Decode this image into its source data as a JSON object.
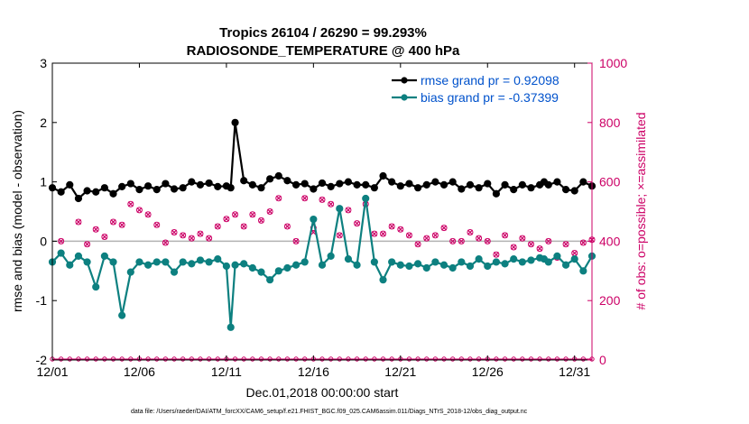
{
  "colors": {
    "rmse": "#000000",
    "bias": "#0d8080",
    "obs": "#cc0066",
    "legend_text": "#0052cc",
    "zero_line": "#b3b3b3",
    "axis": "#000000"
  },
  "chart_data": {
    "type": "line",
    "title_line1": "Tropics 26104 / 26290 = 99.293%",
    "title_line2": "RADIOSONDE_TEMPERATURE @ 400 hPa",
    "xlabel": "Dec.01,2018 00:00:00 start",
    "ylabel_left": "rmse and bias (model - observation)",
    "ylabel_right": "# of obs: o=possible; ×=assimilated",
    "footer": "data file: /Users/raeder/DAI/ATM_forcXX/CAM6_setup/f.e21.FHIST_BGC.f09_025.CAM6assim.011/Diags_NTrS_2018-12/obs_diag_output.nc",
    "x_ticks": [
      0,
      5,
      10,
      15,
      20,
      25,
      30
    ],
    "x_tick_labels": [
      "12/01",
      "12/06",
      "12/11",
      "12/16",
      "12/21",
      "12/26",
      "12/31"
    ],
    "xlim": [
      0,
      31
    ],
    "ylim_left": [
      -2,
      3
    ],
    "y_ticks_left": [
      -2,
      -1,
      0,
      1,
      2,
      3
    ],
    "ylim_right": [
      0,
      1000
    ],
    "y_ticks_right": [
      0,
      200,
      400,
      600,
      800,
      1000
    ],
    "legend": [
      {
        "label": "rmse grand pr = 0.92098",
        "series": "rmse"
      },
      {
        "label": "bias grand pr = -0.37399",
        "series": "bias"
      }
    ],
    "series": [
      {
        "name": "rmse",
        "axis": "left",
        "x": [
          0,
          0.5,
          1,
          1.5,
          2,
          2.5,
          3,
          3.5,
          4,
          4.5,
          5,
          5.5,
          6,
          6.5,
          7,
          7.5,
          8,
          8.5,
          9,
          9.5,
          10,
          10.25,
          10.5,
          11,
          11.5,
          12,
          12.5,
          13,
          13.5,
          14,
          14.5,
          15,
          15.5,
          16,
          16.5,
          17,
          17.5,
          18,
          18.5,
          19,
          19.5,
          20,
          20.5,
          21,
          21.5,
          22,
          22.5,
          23,
          23.5,
          24,
          24.5,
          25,
          25.5,
          26,
          26.5,
          27,
          27.5,
          28,
          28.25,
          28.5,
          29,
          29.5,
          30,
          30.5,
          31
        ],
        "values": [
          0.9,
          0.83,
          0.95,
          0.72,
          0.85,
          0.83,
          0.9,
          0.8,
          0.92,
          0.97,
          0.87,
          0.93,
          0.87,
          0.97,
          0.88,
          0.9,
          1.0,
          0.95,
          0.98,
          0.92,
          0.93,
          0.9,
          2.0,
          1.02,
          0.95,
          0.9,
          1.05,
          1.1,
          1.02,
          0.95,
          0.97,
          0.88,
          0.98,
          0.92,
          0.97,
          1.0,
          0.95,
          0.95,
          0.9,
          1.1,
          1.0,
          0.93,
          0.97,
          0.9,
          0.95,
          1.0,
          0.95,
          1.0,
          0.88,
          0.95,
          0.9,
          0.97,
          0.8,
          0.95,
          0.87,
          0.95,
          0.9,
          0.95,
          1.0,
          0.95,
          1.0,
          0.87,
          0.85,
          1.0,
          0.93
        ]
      },
      {
        "name": "bias",
        "axis": "left",
        "x": [
          0,
          0.5,
          1,
          1.5,
          2,
          2.5,
          3,
          3.5,
          4,
          4.5,
          5,
          5.5,
          6,
          6.5,
          7,
          7.5,
          8,
          8.5,
          9,
          9.5,
          10,
          10.25,
          10.5,
          11,
          11.5,
          12,
          12.5,
          13,
          13.5,
          14,
          14.5,
          15,
          15.5,
          16,
          16.5,
          17,
          17.5,
          18,
          18.5,
          19,
          19.5,
          20,
          20.5,
          21,
          21.5,
          22,
          22.5,
          23,
          23.5,
          24,
          24.5,
          25,
          25.5,
          26,
          26.5,
          27,
          27.5,
          28,
          28.25,
          28.5,
          29,
          29.5,
          30,
          30.5,
          31
        ],
        "values": [
          -0.35,
          -0.2,
          -0.4,
          -0.25,
          -0.35,
          -0.77,
          -0.25,
          -0.35,
          -1.25,
          -0.52,
          -0.35,
          -0.4,
          -0.35,
          -0.35,
          -0.52,
          -0.35,
          -0.38,
          -0.32,
          -0.35,
          -0.3,
          -0.42,
          -1.45,
          -0.4,
          -0.38,
          -0.45,
          -0.52,
          -0.65,
          -0.5,
          -0.45,
          -0.4,
          -0.35,
          0.37,
          -0.4,
          -0.25,
          0.55,
          -0.3,
          -0.4,
          0.72,
          -0.35,
          -0.65,
          -0.35,
          -0.4,
          -0.42,
          -0.38,
          -0.45,
          -0.35,
          -0.4,
          -0.45,
          -0.35,
          -0.42,
          -0.3,
          -0.42,
          -0.35,
          -0.38,
          -0.3,
          -0.35,
          -0.32,
          -0.28,
          -0.3,
          -0.35,
          -0.25,
          -0.4,
          -0.3,
          -0.5,
          -0.25
        ]
      },
      {
        "name": "obs_possible",
        "axis": "right",
        "x": [
          0.5,
          1.5,
          2,
          2.5,
          3,
          3.5,
          4,
          4.5,
          5,
          5.5,
          6,
          6.5,
          7,
          7.5,
          8,
          8.5,
          9,
          9.5,
          10,
          10.5,
          11,
          11.5,
          12,
          12.5,
          13,
          13.5,
          14,
          14.5,
          15,
          15.5,
          16,
          16.5,
          17,
          17.5,
          18,
          18.5,
          19,
          19.5,
          20,
          20.5,
          21,
          21.5,
          22,
          22.5,
          23,
          23.5,
          24,
          24.5,
          25,
          25.5,
          26,
          26.5,
          27,
          27.5,
          28,
          28.5,
          29,
          29.5,
          30,
          30.5,
          31
        ],
        "values": [
          400,
          465,
          390,
          440,
          415,
          465,
          455,
          525,
          505,
          490,
          455,
          395,
          430,
          420,
          410,
          425,
          410,
          450,
          475,
          490,
          450,
          490,
          470,
          500,
          545,
          450,
          400,
          545,
          445,
          540,
          525,
          420,
          505,
          460,
          525,
          425,
          425,
          450,
          440,
          420,
          390,
          410,
          420,
          445,
          400,
          400,
          430,
          410,
          400,
          355,
          420,
          380,
          410,
          390,
          375,
          400,
          345,
          390,
          360,
          395,
          405
        ]
      },
      {
        "name": "obs_assimilated",
        "axis": "right",
        "x": [
          0.5,
          1.5,
          2,
          2.5,
          3,
          3.5,
          4,
          4.5,
          5,
          5.5,
          6,
          6.5,
          7,
          7.5,
          8,
          8.5,
          9,
          9.5,
          10,
          10.5,
          11,
          11.5,
          12,
          12.5,
          13,
          13.5,
          14,
          14.5,
          15,
          15.5,
          16,
          16.5,
          17,
          17.5,
          18,
          18.5,
          19,
          19.5,
          20,
          20.5,
          21,
          21.5,
          22,
          22.5,
          23,
          23.5,
          24,
          24.5,
          25,
          25.5,
          26,
          26.5,
          27,
          27.5,
          28,
          28.5,
          29,
          29.5,
          30,
          30.5,
          31
        ],
        "values": [
          400,
          465,
          390,
          440,
          415,
          465,
          455,
          525,
          505,
          490,
          455,
          395,
          430,
          420,
          410,
          425,
          410,
          450,
          475,
          490,
          450,
          490,
          470,
          500,
          545,
          450,
          400,
          545,
          430,
          540,
          525,
          420,
          505,
          460,
          525,
          425,
          425,
          450,
          440,
          420,
          390,
          410,
          420,
          445,
          400,
          400,
          430,
          410,
          400,
          355,
          420,
          380,
          410,
          390,
          375,
          400,
          345,
          390,
          360,
          395,
          405
        ]
      },
      {
        "name": "obs_zero",
        "axis": "right",
        "x": [
          0,
          0.5,
          1,
          1.5,
          2,
          2.5,
          3,
          3.5,
          4,
          4.5,
          5,
          5.5,
          6,
          6.5,
          7,
          7.5,
          8,
          8.5,
          9,
          9.5,
          10,
          10.5,
          11,
          11.5,
          12,
          12.5,
          13,
          13.5,
          14,
          14.5,
          15,
          15.5,
          16,
          16.5,
          17,
          17.5,
          18,
          18.5,
          19,
          19.5,
          20,
          20.5,
          21,
          21.5,
          22,
          22.5,
          23,
          23.5,
          24,
          24.5,
          25,
          25.5,
          26,
          26.5,
          27,
          27.5,
          28,
          28.5,
          29,
          29.5,
          30,
          30.5,
          31
        ],
        "values": [
          0,
          0,
          0,
          0,
          0,
          0,
          0,
          0,
          0,
          0,
          0,
          0,
          0,
          0,
          0,
          0,
          0,
          0,
          0,
          0,
          0,
          0,
          0,
          0,
          0,
          0,
          0,
          0,
          0,
          0,
          0,
          0,
          0,
          0,
          0,
          0,
          0,
          0,
          0,
          0,
          0,
          0,
          0,
          0,
          0,
          0,
          0,
          0,
          0,
          0,
          0,
          0,
          0,
          0,
          0,
          0,
          0,
          0,
          0,
          0,
          0,
          0,
          0
        ]
      }
    ]
  }
}
